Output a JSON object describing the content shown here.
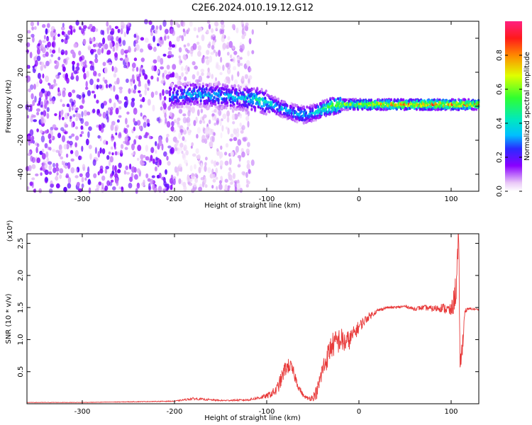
{
  "title": "C2E6.2024.010.19.12.G12",
  "chart_data": [
    {
      "type": "heatmap",
      "xlabel": "Height of straight line (km)",
      "ylabel": "Frequency (Hz)",
      "xlim": [
        -360,
        130
      ],
      "ylim": [
        -50,
        50
      ],
      "xticks": [
        -300,
        -200,
        -100,
        0,
        100
      ],
      "yticks": [
        -40,
        -20,
        0,
        20,
        40
      ],
      "colorbar": {
        "label": "Normalized spectral amplitude",
        "range": [
          0.0,
          1.0
        ],
        "ticks": [
          0.0,
          0.2,
          0.4,
          0.6,
          0.8
        ],
        "tick_labels": [
          "0.0",
          "0.2",
          "0.4",
          "0.6",
          "0.8"
        ]
      },
      "centerline": {
        "x": [
          -205,
          -180,
          -150,
          -130,
          -110,
          -100,
          -90,
          -80,
          -70,
          -60,
          -50,
          -40,
          -30,
          -20,
          -10,
          0,
          20,
          50,
          80,
          110,
          130
        ],
        "freq": [
          6,
          7,
          6,
          5,
          4,
          2,
          0,
          -2,
          -4,
          -5,
          -4,
          -2,
          0,
          1,
          1,
          1,
          1,
          1,
          1,
          1,
          1
        ],
        "amplitude": [
          0.3,
          0.35,
          0.35,
          0.35,
          0.45,
          0.45,
          0.4,
          0.35,
          0.35,
          0.4,
          0.35,
          0.5,
          0.6,
          0.65,
          0.6,
          0.65,
          0.75,
          0.8,
          0.85,
          0.8,
          0.75
        ]
      },
      "noise_region": {
        "x": [
          -360,
          -115
        ],
        "level": 0.2
      }
    },
    {
      "type": "line",
      "xlabel": "Height of straight line (km)",
      "ylabel": "SNR (10 * v/v)",
      "y_multiplier": "(x10⁴)",
      "xlim": [
        -360,
        130
      ],
      "ylim": [
        0,
        2.65
      ],
      "xticks": [
        -300,
        -200,
        -100,
        0,
        100
      ],
      "yticks": [
        0.5,
        1.0,
        1.5,
        2.0,
        2.5
      ],
      "ytick_labels": [
        "0.5",
        "1.0",
        "1.5",
        "2.0",
        "2.5"
      ],
      "color": "#e83a3a",
      "series": [
        {
          "x": [
            -360,
            -300,
            -250,
            -200,
            -180,
            -150,
            -120,
            -100,
            -90,
            -85,
            -80,
            -75,
            -70,
            -65,
            -60,
            -55,
            -50,
            -45,
            -40,
            -35,
            -30,
            -25,
            -20,
            -15,
            -10,
            -5,
            0,
            10,
            20,
            30,
            40,
            50,
            60,
            70,
            80,
            90,
            100,
            103,
            106,
            108,
            110,
            115,
            120,
            130
          ],
          "y": [
            0.02,
            0.02,
            0.03,
            0.04,
            0.08,
            0.05,
            0.06,
            0.12,
            0.2,
            0.35,
            0.55,
            0.6,
            0.45,
            0.25,
            0.12,
            0.08,
            0.1,
            0.2,
            0.5,
            0.7,
            0.9,
            0.95,
            1.0,
            0.95,
            1.0,
            1.1,
            1.2,
            1.35,
            1.45,
            1.5,
            1.5,
            1.52,
            1.48,
            1.5,
            1.48,
            1.5,
            1.45,
            1.6,
            1.9,
            2.6,
            0.5,
            1.45,
            1.48,
            1.47
          ],
          "noise_amplitude": [
            0.003,
            0.003,
            0.005,
            0.006,
            0.02,
            0.01,
            0.015,
            0.04,
            0.08,
            0.12,
            0.12,
            0.12,
            0.1,
            0.06,
            0.03,
            0.03,
            0.06,
            0.12,
            0.18,
            0.18,
            0.2,
            0.2,
            0.2,
            0.18,
            0.15,
            0.12,
            0.1,
            0.06,
            0.03,
            0.02,
            0.02,
            0.02,
            0.03,
            0.04,
            0.05,
            0.07,
            0.1,
            0.2,
            0.3,
            0.3,
            0.3,
            0.04,
            0.02,
            0.01
          ]
        }
      ]
    }
  ]
}
